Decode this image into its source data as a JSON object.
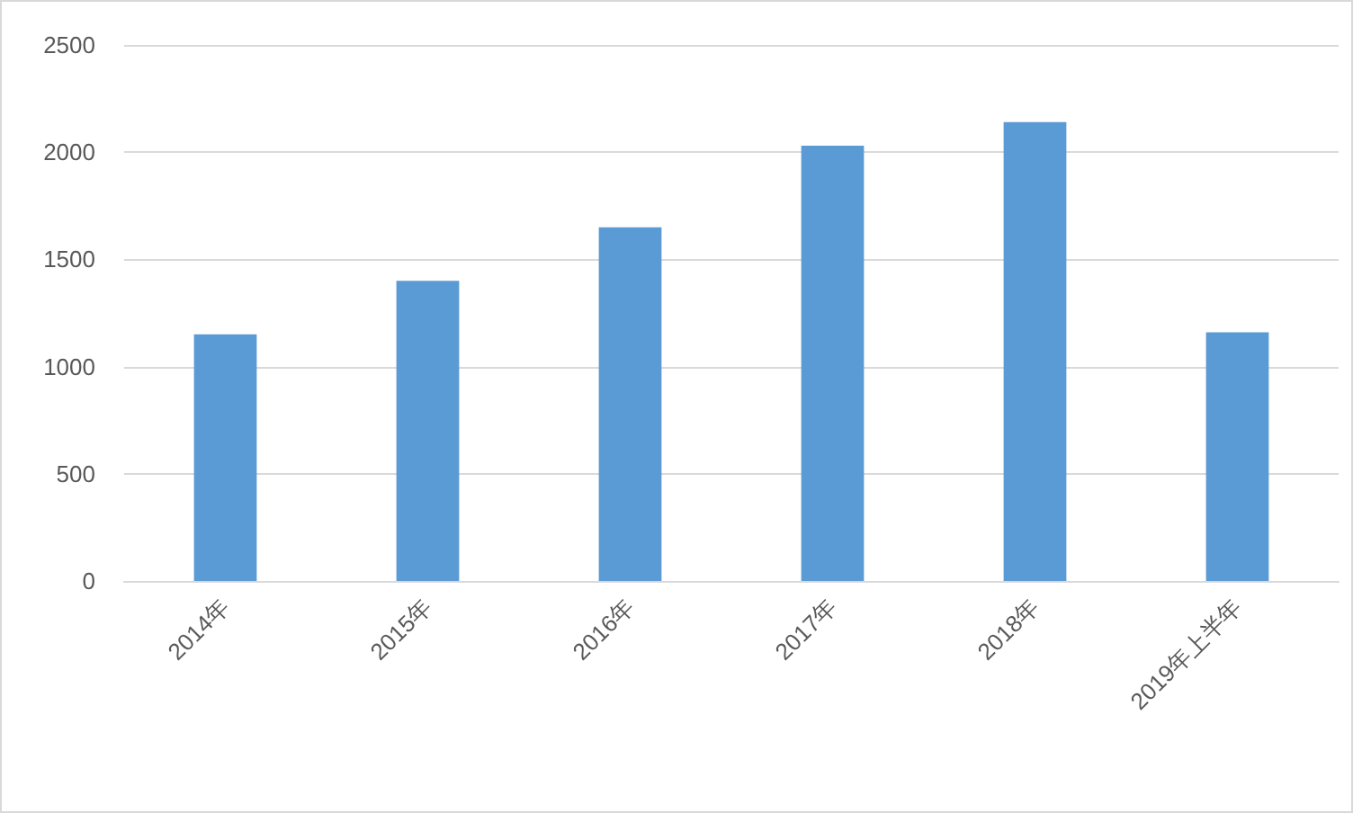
{
  "chart_data": {
    "type": "bar",
    "categories": [
      "2014年",
      "2015年",
      "2016年",
      "2017年",
      "2018年",
      "2019年上半年"
    ],
    "values": [
      1150,
      1400,
      1650,
      2030,
      2140,
      1160
    ],
    "color": "#5b9bd5",
    "ylim": [
      0,
      2500
    ],
    "yticks": [
      0,
      500,
      1000,
      1500,
      2000,
      2500
    ],
    "grid": "y"
  }
}
